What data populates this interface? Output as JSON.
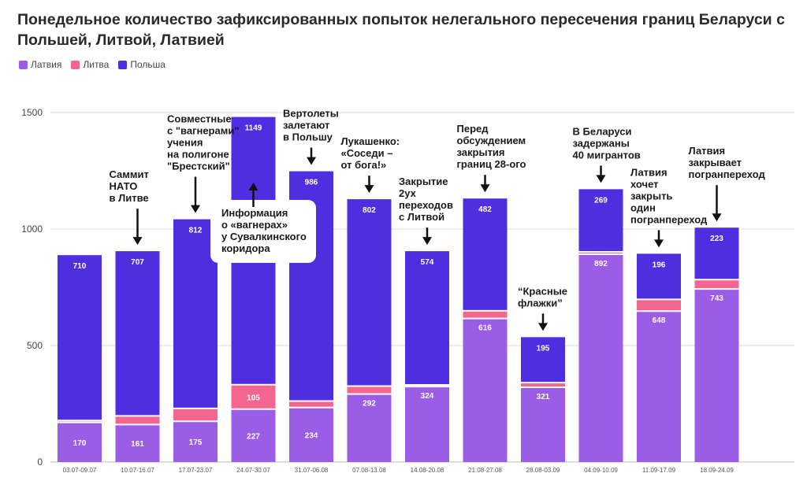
{
  "title": "Понедельное количество зафиксированных попыток нелегального пересечения границ Беларуси с Польшей, Литвой, Латвией",
  "chart_data": {
    "type": "bar",
    "stacked": true,
    "categories": [
      "03.07-09.07",
      "10.07-16.07",
      "17.07-23.07",
      "24.07-30.07",
      "31.07-06.08",
      "07.08-13.08",
      "14.08-20.08",
      "21.08-27.08",
      "28.08-03.09",
      "04.09-10.09",
      "11.09-17.09",
      "18.09-24.09"
    ],
    "series": [
      {
        "name": "Латвия",
        "color": "#9b5de5",
        "values": [
          170,
          161,
          175,
          227,
          234,
          292,
          324,
          616,
          321,
          892,
          648,
          743
        ],
        "labels": [
          "170",
          "161",
          "175",
          "227",
          "234",
          "292",
          "324",
          "616",
          "321",
          "892",
          "648",
          "743"
        ]
      },
      {
        "name": "Литва",
        "color": "#f4668f",
        "values": [
          8,
          37,
          55,
          105,
          28,
          34,
          7,
          33,
          20,
          10,
          50,
          40
        ],
        "labels": [
          "",
          "",
          "",
          "105",
          "",
          "",
          "",
          "",
          "",
          "",
          "",
          ""
        ]
      },
      {
        "name": "Польша",
        "color": "#4f2ee0",
        "values": [
          710,
          707,
          812,
          1149,
          986,
          802,
          574,
          482,
          195,
          269,
          196,
          223
        ],
        "labels": [
          "710",
          "707",
          "812",
          "1149",
          "986",
          "802",
          "574",
          "482",
          "195",
          "269",
          "196",
          "223"
        ]
      }
    ],
    "ylim": [
      0,
      1600
    ],
    "yticks": [
      0,
      500,
      1000,
      1500
    ],
    "grid": true,
    "legend": "top-left"
  },
  "annotations": [
    {
      "cat": 1,
      "lines": [
        "Саммит",
        "НАТО",
        "в Литве"
      ]
    },
    {
      "cat": 2,
      "lines": [
        "Совместные",
        "с \"вагнерами\"",
        "учения",
        "на полигоне",
        "\"Брестский\""
      ]
    },
    {
      "cat": 3,
      "lines": [
        "Информация",
        "о «вагнерах»",
        "у Сувалкинского",
        "коридора"
      ],
      "boxed": true
    },
    {
      "cat": 4,
      "lines": [
        "Вертолеты",
        "залетают",
        "в Польшу"
      ]
    },
    {
      "cat": 5,
      "lines": [
        "Лукашенко:",
        "«Соседи –",
        "от бога!»"
      ]
    },
    {
      "cat": 6,
      "lines": [
        "Закрытие",
        "2ух",
        "переходов",
        "с Литвой"
      ]
    },
    {
      "cat": 7,
      "lines": [
        "Перед",
        "обсуждением",
        "закрытия",
        "границ 28-ого"
      ]
    },
    {
      "cat": 8,
      "lines": [
        "“Красные",
        "флажки”"
      ]
    },
    {
      "cat": 9,
      "lines": [
        "В Беларуси",
        "задержаны",
        "40 мигрантов"
      ]
    },
    {
      "cat": 10,
      "lines": [
        "Латвия",
        "хочет",
        "закрыть",
        "один",
        "погранпереход"
      ]
    },
    {
      "cat": 11,
      "lines": [
        "Латвия",
        "закрывает",
        "погранпереход"
      ]
    }
  ]
}
